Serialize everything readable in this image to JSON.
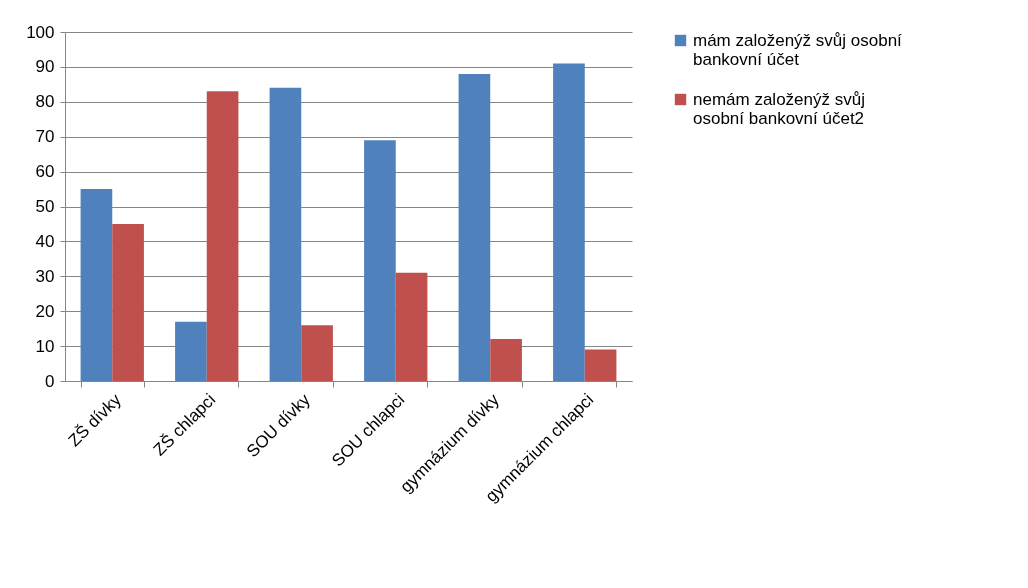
{
  "chart_data": {
    "type": "bar",
    "categories": [
      "ZŠ dívky",
      "ZŠ chlapci",
      "SOU dívky",
      "SOU chlapci",
      "gymnázium dívky",
      "gymnázium chlapci"
    ],
    "series": [
      {
        "name": "mám založenýž svůj osobní bankovní účet",
        "color": "#4f81bd",
        "values": [
          55,
          17,
          84,
          69,
          88,
          91
        ]
      },
      {
        "name": "nemám založenýž svůj osobní bankovní účet2",
        "color": "#c0504d",
        "values": [
          45,
          83,
          16,
          31,
          12,
          9
        ]
      }
    ],
    "ylim": [
      0,
      100
    ],
    "yticks": [
      0,
      10,
      20,
      30,
      40,
      50,
      60,
      70,
      80,
      90,
      100
    ],
    "grid": "y",
    "legend": "right"
  }
}
